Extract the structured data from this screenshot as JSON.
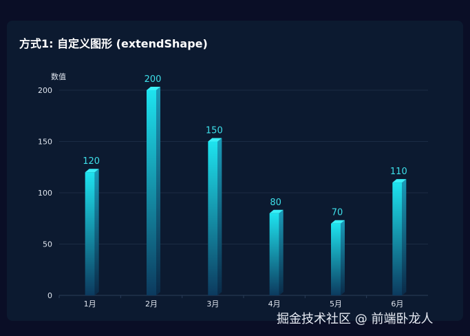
{
  "card": {
    "title": "方式1: 自定义图形 (extendShape)"
  },
  "watermark": "掘金技术社区 @ 前端卧龙人",
  "colors": {
    "page_background": "#0a0e26",
    "card_background": "#0c1a30",
    "bar_top": "#1ee3ef",
    "bar_bottom": "#0c3a5e",
    "bar_cap": "#3af0f8",
    "bar_side_top": "#1a9bb8",
    "bar_side_bottom": "#0a2a48",
    "label": "#3ee0ea",
    "axis_text": "#e0e6ef",
    "grid": "#1b2c44"
  },
  "chart_data": {
    "type": "bar",
    "style": "3d-cylinder-bars",
    "categories": [
      "1月",
      "2月",
      "3月",
      "4月",
      "5月",
      "6月"
    ],
    "values": [
      120,
      200,
      150,
      80,
      70,
      110
    ],
    "ylabel": "数值",
    "xlabel": "",
    "ylim": [
      0,
      200
    ],
    "yticks": [
      0,
      50,
      100,
      150,
      200
    ],
    "data_labels": true,
    "grid": true,
    "legend": "none"
  }
}
